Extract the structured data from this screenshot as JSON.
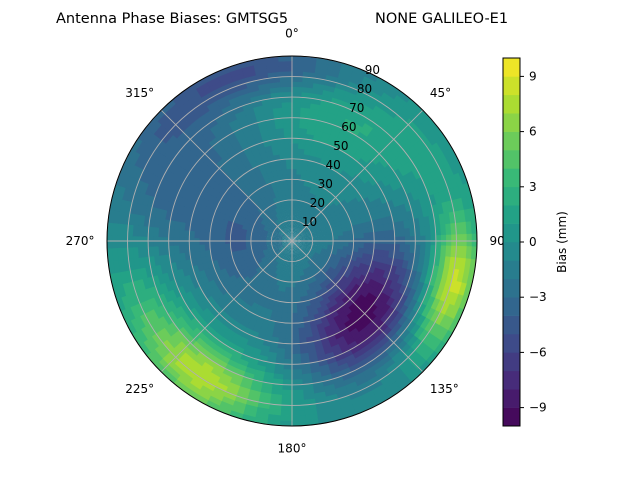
{
  "chart_data": {
    "type": "heatmap",
    "projection": "polar",
    "title_left": "Antenna Phase Biases: GMTSG5",
    "title_right": "NONE GALILEO-E1",
    "azimuth_tick_labels": [
      "0°",
      "45°",
      "90",
      "135°",
      "180°",
      "225°",
      "270°",
      "315°"
    ],
    "azimuth_ticks_deg": [
      0,
      45,
      90,
      135,
      180,
      225,
      270,
      315
    ],
    "radial_tick_labels": [
      "10",
      "20",
      "30",
      "40",
      "50",
      "60",
      "70",
      "80",
      "90"
    ],
    "radial_ticks": [
      10,
      20,
      30,
      40,
      50,
      60,
      70,
      80,
      90
    ],
    "rlim": [
      0,
      90
    ],
    "theta_direction": "clockwise",
    "theta_zero": "top",
    "grid": true,
    "colormap": "viridis",
    "color_levels": 20,
    "clim": [
      -10,
      10
    ],
    "colorbar": {
      "label": "Bias (mm)",
      "tick_labels": [
        "−9",
        "−6",
        "−3",
        "0",
        "3",
        "6",
        "9"
      ],
      "ticks": [
        -9,
        -6,
        -3,
        0,
        3,
        6,
        9
      ],
      "placement": "right"
    },
    "baseline": -1.0,
    "features": [
      {
        "az": 128,
        "zen": 44,
        "value": -6.5,
        "width_az": 30,
        "width_zen": 16
      },
      {
        "az": 150,
        "zen": 60,
        "value": -4.5,
        "width_az": 25,
        "width_zen": 14
      },
      {
        "az": 112,
        "zen": 80,
        "value": 6.5,
        "width_az": 18,
        "width_zen": 10
      },
      {
        "az": 100,
        "zen": 82,
        "value": 4.0,
        "width_az": 14,
        "width_zen": 8
      },
      {
        "az": 230,
        "zen": 78,
        "value": 5.5,
        "width_az": 28,
        "width_zen": 14
      },
      {
        "az": 210,
        "zen": 80,
        "value": 3.5,
        "width_az": 14,
        "width_zen": 10
      },
      {
        "az": 25,
        "zen": 62,
        "value": 3.0,
        "width_az": 30,
        "width_zen": 15
      },
      {
        "az": 345,
        "zen": 85,
        "value": -4.0,
        "width_az": 25,
        "width_zen": 8
      },
      {
        "az": 300,
        "zen": 65,
        "value": -3.0,
        "width_az": 30,
        "width_zen": 18
      },
      {
        "az": 60,
        "zen": 80,
        "value": 1.5,
        "width_az": 20,
        "width_zen": 12
      },
      {
        "az": 270,
        "zen": 25,
        "value": -3.0,
        "width_az": 45,
        "width_zen": 14
      },
      {
        "az": 0,
        "zen": 8,
        "value": 0.0,
        "width_az": 180,
        "width_zen": 8
      },
      {
        "az": 180,
        "zen": 70,
        "value": 2.0,
        "width_az": 30,
        "width_zen": 15
      }
    ]
  }
}
